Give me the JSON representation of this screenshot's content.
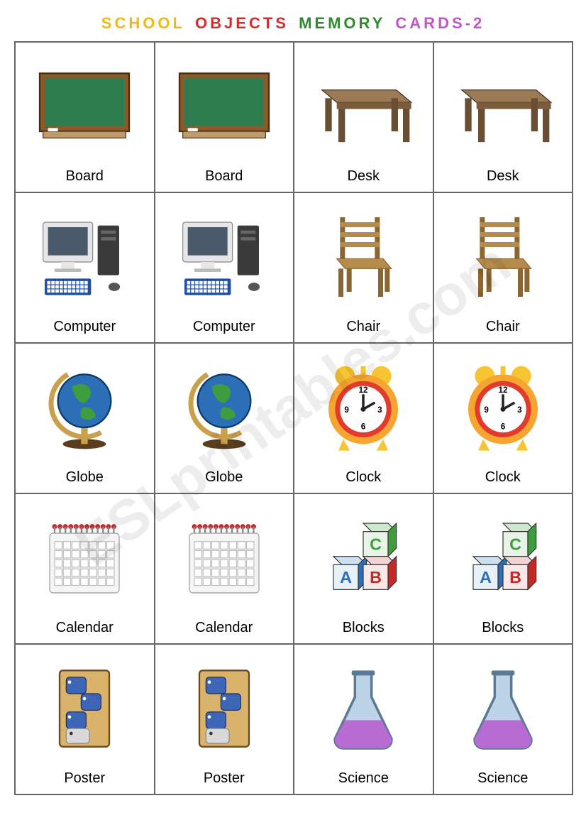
{
  "title": {
    "words": [
      {
        "text": "SCHOOL",
        "color": "#f2b90f"
      },
      {
        "text": "OBJECTS",
        "color": "#d62e2e"
      },
      {
        "text": "MEMORY",
        "color": "#2e8b2e"
      },
      {
        "text": "CARDS-2",
        "color": "#c255c9"
      }
    ],
    "fontsize": 22,
    "letter_spacing": 4
  },
  "watermark": {
    "text": "ESLprintables.com",
    "color": "rgba(0,0,0,0.07)",
    "fontsize": 80,
    "rotation_deg": -35
  },
  "grid": {
    "rows": 5,
    "cols": 4,
    "border_color": "#666666",
    "label_fontsize": 20,
    "label_color": "#000000",
    "cells": [
      {
        "label": "Board",
        "icon": "board"
      },
      {
        "label": "Board",
        "icon": "board"
      },
      {
        "label": "Desk",
        "icon": "desk"
      },
      {
        "label": "Desk",
        "icon": "desk"
      },
      {
        "label": "Computer",
        "icon": "computer"
      },
      {
        "label": "Computer",
        "icon": "computer"
      },
      {
        "label": "Chair",
        "icon": "chair"
      },
      {
        "label": "Chair",
        "icon": "chair"
      },
      {
        "label": "Globe",
        "icon": "globe"
      },
      {
        "label": "Globe",
        "icon": "globe"
      },
      {
        "label": "Clock",
        "icon": "clock"
      },
      {
        "label": "Clock",
        "icon": "clock"
      },
      {
        "label": "Calendar",
        "icon": "calendar"
      },
      {
        "label": "Calendar",
        "icon": "calendar"
      },
      {
        "label": "Blocks",
        "icon": "blocks"
      },
      {
        "label": "Blocks",
        "icon": "blocks"
      },
      {
        "label": "Poster",
        "icon": "poster"
      },
      {
        "label": "Poster",
        "icon": "poster"
      },
      {
        "label": "Science",
        "icon": "science"
      },
      {
        "label": "Science",
        "icon": "science"
      }
    ]
  },
  "icons": {
    "board": {
      "type": "chalkboard",
      "board_color": "#2e7d4f",
      "frame_color": "#8a5a2b",
      "tray_color": "#c09a6b"
    },
    "desk": {
      "type": "table",
      "top_color": "#9c7a55",
      "side_color": "#7b5d3e",
      "leg_color": "#6a4e33"
    },
    "computer": {
      "type": "pc",
      "monitor_bezel": "#e6e6e6",
      "screen_color": "#4a5a6a",
      "tower_color": "#3a3a3a",
      "keyboard_color": "#1e4fa3",
      "mouse_color": "#555555"
    },
    "chair": {
      "type": "wood-chair",
      "wood_color": "#b58b4c",
      "wood_dark": "#8a6730"
    },
    "globe": {
      "type": "world-globe",
      "ocean_color": "#2d6fb7",
      "land_color": "#3e9e3e",
      "stand_color": "#caa14a",
      "base_color": "#5a3d1f"
    },
    "clock": {
      "type": "alarm-clock",
      "bell_color": "#f7c531",
      "ring_outer": "#f7a531",
      "ring_inner": "#e23b2e",
      "face_color": "#ffffff",
      "hand_color": "#222222"
    },
    "calendar": {
      "type": "desk-calendar",
      "binding_color": "#c62828",
      "page_color": "#f5f5f5",
      "grid_color": "#bdbdbd"
    },
    "blocks": {
      "type": "letter-blocks",
      "block_colors": [
        "#3e9e3e",
        "#2d6fb7",
        "#c62828"
      ],
      "letters": [
        "A",
        "B",
        "C"
      ],
      "letter_color": "#1a1a1a"
    },
    "poster": {
      "type": "framed-poster",
      "bg_color": "#d9b36b",
      "elephant_color": "#3e66b7",
      "elephant_gray": "#d9d9d9"
    },
    "science": {
      "type": "flask",
      "glass_color": "#bcd4e6",
      "liquid_color": "#b96bd4",
      "outline_color": "#5a7a94"
    }
  }
}
